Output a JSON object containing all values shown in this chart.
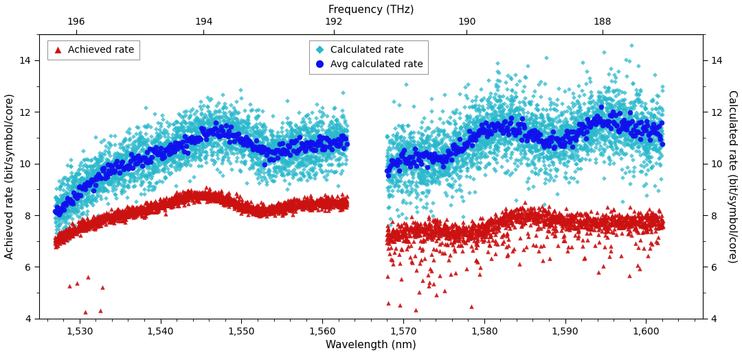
{
  "title_top": "Frequency (THz)",
  "xlabel": "Wavelength (nm)",
  "ylabel_left": "Achieved rate (bit/symbol/core)",
  "ylabel_right": "Calculated rate (bit/symbol/core)",
  "xlim": [
    1525,
    1607
  ],
  "ylim": [
    4,
    15
  ],
  "yticks": [
    4,
    6,
    8,
    10,
    12,
    14
  ],
  "xticks_bottom": [
    1530,
    1540,
    1550,
    1560,
    1570,
    1580,
    1590,
    1600
  ],
  "xtick_labels_bottom": [
    "1,530",
    "1,540",
    "1,550",
    "1,560",
    "1,570",
    "1,580",
    "1,590",
    "1,600"
  ],
  "freq_ticks": [
    196,
    194,
    192,
    190,
    188
  ],
  "bg_color": "#ffffff",
  "calc_color": "#29b8cc",
  "avg_color": "#1010ee",
  "achieved_color": "#cc1111",
  "fontsize": 11
}
